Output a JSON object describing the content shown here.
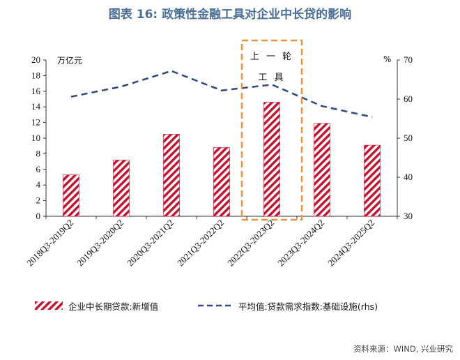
{
  "chart_data": {
    "type": "bar",
    "title": "图表 16: 政策性金融工具对企业中长贷的影响",
    "categories": [
      "2018Q3-2019Q2",
      "2019Q3-2020Q2",
      "2020Q3-2021Q2",
      "2021Q3-2022Q2",
      "2022Q3-2023Q2",
      "2023Q3-2024Q2",
      "2024Q3-2025Q2"
    ],
    "series": [
      {
        "name": "企业中长期贷款:新增值",
        "type": "bar",
        "axis": "left",
        "values": [
          5.3,
          7.2,
          10.5,
          8.8,
          14.6,
          11.9,
          9.1
        ]
      },
      {
        "name": "平均值:贷款需求指数:基础设施(rhs)",
        "type": "line",
        "axis": "right",
        "style": "dashed",
        "values": [
          60.6,
          63.2,
          67.2,
          62.2,
          63.7,
          58.2,
          55.4
        ]
      }
    ],
    "ylabel_left": "万亿元",
    "ylabel_right": "%",
    "ylim_left": [
      0,
      20
    ],
    "ylim_right": [
      30,
      70
    ],
    "yticks_left": [
      0,
      2,
      4,
      6,
      8,
      10,
      12,
      14,
      16,
      18,
      20
    ],
    "yticks_right": [
      30,
      40,
      50,
      60,
      70
    ],
    "annotation": {
      "line1": "上 一 轮",
      "line2": "工 具",
      "highlight_category_index": 4
    },
    "legend_position": "bottom"
  },
  "colors": {
    "bar": "#c8102e",
    "line": "#2e4a7a",
    "title": "#4a6f97",
    "highlight": "#f0923a"
  },
  "source": "资料来源：WIND, 兴业研究"
}
